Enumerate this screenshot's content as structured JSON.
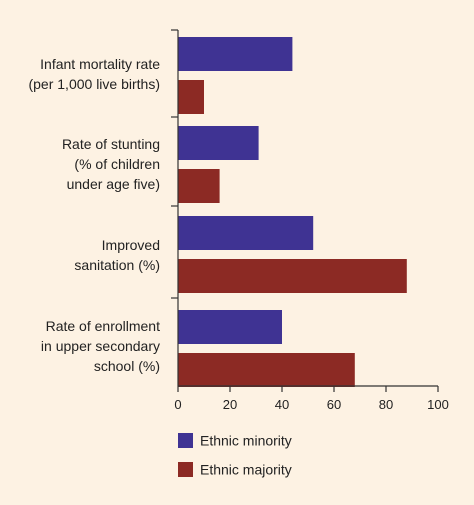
{
  "chart_data": {
    "type": "bar",
    "orientation": "horizontal",
    "categories": [
      [
        "Infant mortality rate",
        "(per 1,000 live births)"
      ],
      [
        "Rate of stunting",
        "(% of children",
        "under age five)"
      ],
      [
        "Improved",
        "sanitation (%)"
      ],
      [
        "Rate of enrollment",
        "in upper secondary",
        "school (%)"
      ]
    ],
    "series": [
      {
        "name": "Ethnic minority",
        "color": "#3f3393",
        "values": [
          44,
          31,
          52,
          40
        ]
      },
      {
        "name": "Ethnic majority",
        "color": "#8c2a24",
        "values": [
          10,
          16,
          88,
          68
        ]
      }
    ],
    "xlim": [
      0,
      100
    ],
    "xticks": [
      0,
      20,
      40,
      60,
      80,
      100
    ],
    "grid": false,
    "legend_position": "bottom",
    "title": "",
    "xlabel": "",
    "ylabel": ""
  }
}
